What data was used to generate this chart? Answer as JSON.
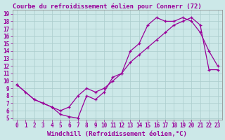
{
  "title": "Courbe du refroidissement éolien pour Connerr (72)",
  "xlabel": "Windchill (Refroidissement éolien,°C)",
  "bg_color": "#cce8e8",
  "line_color": "#990099",
  "grid_color": "#aacccc",
  "xlim": [
    -0.5,
    23.5
  ],
  "ylim": [
    5,
    19
  ],
  "yticks": [
    5,
    6,
    7,
    8,
    9,
    10,
    11,
    12,
    13,
    14,
    15,
    16,
    17,
    18,
    19
  ],
  "xticks": [
    0,
    1,
    2,
    3,
    4,
    5,
    6,
    7,
    8,
    9,
    10,
    11,
    12,
    13,
    14,
    15,
    16,
    17,
    18,
    19,
    20,
    21,
    22,
    23
  ],
  "line1_x": [
    0,
    1,
    2,
    3,
    4,
    5,
    6,
    7,
    8,
    9,
    10,
    11,
    12,
    13,
    14,
    15,
    16,
    17,
    18,
    19,
    20,
    21,
    22,
    23
  ],
  "line1_y": [
    9.5,
    8.5,
    7.5,
    7.0,
    6.5,
    5.5,
    5.2,
    5.0,
    8.0,
    7.5,
    8.5,
    10.5,
    11.0,
    14.0,
    15.0,
    17.5,
    18.5,
    18.0,
    18.0,
    18.5,
    18.0,
    16.5,
    14.0,
    12.0
  ],
  "line2_x": [
    0,
    2,
    3,
    4,
    5,
    6,
    7,
    8,
    9,
    10,
    11,
    12,
    13,
    14,
    15,
    16,
    17,
    18,
    19,
    20,
    21,
    22,
    23
  ],
  "line2_y": [
    9.5,
    7.5,
    7.0,
    6.5,
    6.0,
    6.5,
    8.0,
    9.0,
    8.5,
    9.0,
    10.0,
    11.0,
    12.5,
    13.5,
    14.5,
    15.5,
    16.5,
    17.5,
    18.0,
    18.5,
    17.5,
    11.5,
    11.5
  ],
  "title_fontsize": 6.5,
  "tick_fontsize": 5.5,
  "xlabel_fontsize": 6.5
}
